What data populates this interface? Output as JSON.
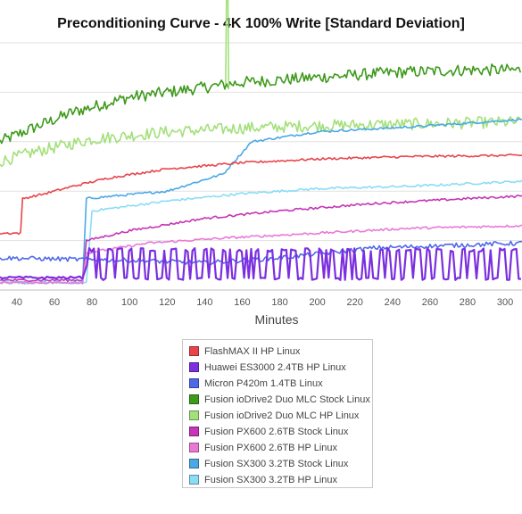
{
  "chart_data": {
    "type": "line",
    "title": "Preconditioning Curve - 4K 100% Write [Standard Deviation]",
    "xlabel": "Minutes",
    "ylabel": "",
    "xlim": [
      31,
      309
    ],
    "ylim": [
      0,
      100
    ],
    "x_ticks": [
      "40",
      "60",
      "80",
      "100",
      "120",
      "140",
      "160",
      "180",
      "200",
      "220",
      "240",
      "260",
      "280",
      "300"
    ],
    "grid": "horizontal",
    "legend_position": "bottom",
    "series": [
      {
        "name": "FlashMAX II HP Linux",
        "color": "#e8454b",
        "style": "smooth",
        "points": [
          [
            31,
            23
          ],
          [
            42,
            23
          ],
          [
            43,
            37
          ],
          [
            55,
            39
          ],
          [
            70,
            42
          ],
          [
            90,
            45.5
          ],
          [
            120,
            49
          ],
          [
            160,
            51.5
          ],
          [
            200,
            53
          ],
          [
            250,
            54
          ],
          [
            309,
            54.5
          ]
        ]
      },
      {
        "name": "Huawei ES3000 2.4TB HP Linux",
        "color": "#7b2fe0",
        "style": "oscillate",
        "low": 4,
        "high": 17,
        "points": [
          [
            31,
            5
          ],
          [
            75,
            5
          ],
          [
            78,
            12
          ],
          [
            83,
            12
          ],
          [
            309,
            12
          ]
        ]
      },
      {
        "name": "Micron P420m 1.4TB Linux",
        "color": "#4f68e8",
        "style": "noisy",
        "points": [
          [
            31,
            13
          ],
          [
            100,
            12
          ],
          [
            140,
            11
          ],
          [
            180,
            13
          ],
          [
            230,
            17
          ],
          [
            309,
            19
          ]
        ]
      },
      {
        "name": "Fusion ioDrive2 Duo MLC Stock Linux",
        "color": "#3e9a1c",
        "style": "spiky",
        "points": [
          [
            31,
            60
          ],
          [
            50,
            66
          ],
          [
            70,
            72
          ],
          [
            100,
            78
          ],
          [
            130,
            81
          ],
          [
            160,
            84
          ],
          [
            200,
            86
          ],
          [
            240,
            88
          ],
          [
            280,
            89
          ],
          [
            309,
            89
          ]
        ]
      },
      {
        "name": "Fusion ioDrive2 Duo MLC HP Linux",
        "color": "#a3e07a",
        "style": "spiky",
        "points": [
          [
            31,
            52
          ],
          [
            50,
            56
          ],
          [
            80,
            61
          ],
          [
            120,
            64
          ],
          [
            160,
            65.5
          ],
          [
            200,
            66.5
          ],
          [
            240,
            67
          ],
          [
            309,
            68
          ]
        ]
      },
      {
        "name": "Fusion PX600 2.6TB Stock Linux",
        "color": "#c535b5",
        "style": "smooth",
        "points": [
          [
            31,
            4
          ],
          [
            75,
            4
          ],
          [
            77,
            20
          ],
          [
            100,
            24
          ],
          [
            140,
            29
          ],
          [
            180,
            32
          ],
          [
            230,
            35
          ],
          [
            280,
            37
          ],
          [
            309,
            38
          ]
        ]
      },
      {
        "name": "Fusion PX600 2.6TB HP Linux",
        "color": "#e87ad6",
        "style": "smooth",
        "points": [
          [
            31,
            3
          ],
          [
            75,
            3
          ],
          [
            77,
            15
          ],
          [
            110,
            19
          ],
          [
            150,
            21
          ],
          [
            200,
            23
          ],
          [
            250,
            25
          ],
          [
            309,
            26
          ]
        ]
      },
      {
        "name": "Fusion SX300 3.2TB Stock Linux",
        "color": "#4aa8e6",
        "style": "smooth",
        "points": [
          [
            31,
            3
          ],
          [
            75,
            3
          ],
          [
            77,
            37
          ],
          [
            120,
            40
          ],
          [
            150,
            47
          ],
          [
            165,
            60
          ],
          [
            200,
            64
          ],
          [
            250,
            66
          ],
          [
            309,
            69
          ]
        ]
      },
      {
        "name": "Fusion SX300 3.2TB HP Linux",
        "color": "#8adcf7",
        "style": "smooth",
        "points": [
          [
            31,
            3
          ],
          [
            77,
            3
          ],
          [
            80,
            32
          ],
          [
            120,
            36
          ],
          [
            160,
            39
          ],
          [
            200,
            41
          ],
          [
            250,
            42
          ],
          [
            309,
            44
          ]
        ]
      }
    ],
    "annotations": [
      {
        "series": "Fusion ioDrive2 Duo MLC Stock Linux",
        "x": 152,
        "y": 100,
        "note": "spike to top"
      }
    ]
  }
}
